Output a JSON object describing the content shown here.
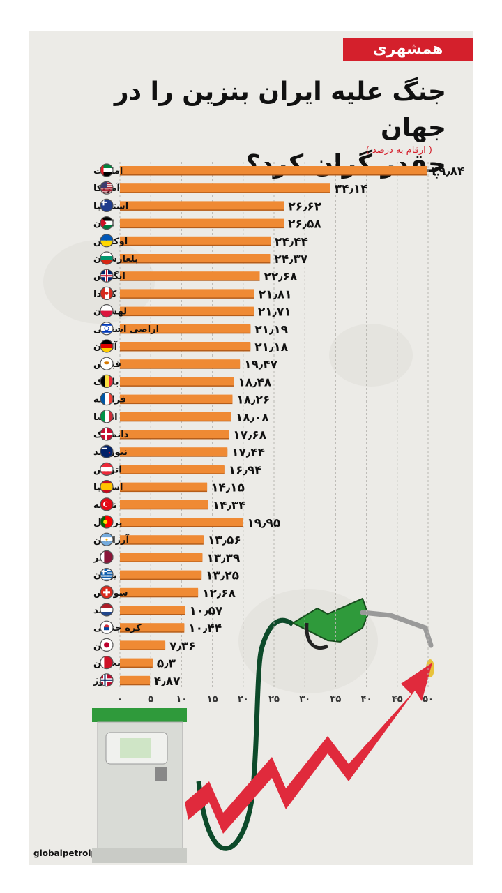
{
  "brand": {
    "logo_text": "همشهری",
    "accent": "#d4202c"
  },
  "header": {
    "title_line1": "جنگ علیه ایران بنزین را در جهان",
    "title_line2": "چقدر گران کرد؟",
    "units_note": "( ارقام به درصد )"
  },
  "footer": {
    "source": "globalpetrolprices /منبع: الجزیره"
  },
  "colors": {
    "bar": "#ef8a34",
    "bar_shadow": "#b55d1a",
    "arrow": "#e02a3c",
    "nozzle": "#2f9a3b",
    "hose": "#0d4a2a"
  },
  "chart_data": {
    "type": "bar",
    "orientation": "horizontal",
    "title": "جنگ علیه ایران بنزین را در جهان چقدر گران کرد؟",
    "ylabel": "( ارقام به درصد )",
    "xlim": [
      0,
      50
    ],
    "x_ticks": [
      "۰",
      "۵",
      "۱۰",
      "۱۵",
      "۲۰",
      "۲۵",
      "۳۰",
      "۳۵",
      "۴۰",
      "۴۵",
      "۵۰"
    ],
    "categories": [
      "امارات",
      "آمریکا",
      "استرالیا",
      "اردن",
      "اوکراین",
      "بلغارستان",
      "انگلیس",
      "کانادا",
      "لهستان",
      "اراضی اشغالی",
      "آلمان",
      "قبرس",
      "بلژیک",
      "فرانسه",
      "ایتالیا",
      "دانمارک",
      "نیوزیلند",
      "اتریش",
      "اسپانیا",
      "ترکیه",
      "پرتغال",
      "آرژانتین",
      "قطر",
      "یونان",
      "سوئیس",
      "هلند",
      "کره جنوبی",
      "ژاپن",
      "بحرین",
      "نروژ"
    ],
    "values": [
      49.84,
      34.14,
      26.62,
      26.58,
      24.44,
      24.37,
      22.68,
      21.81,
      21.71,
      21.19,
      21.18,
      19.47,
      18.48,
      18.26,
      18.08,
      17.68,
      17.44,
      16.94,
      14.15,
      14.34,
      19.95,
      13.56,
      13.39,
      13.25,
      12.68,
      10.57,
      10.44,
      7.36,
      5.3,
      4.87
    ],
    "value_labels": [
      "۴۹٫۸۴",
      "۳۴٫۱۴",
      "۲۶٫۶۲",
      "۲۶٫۵۸",
      "۲۴٫۴۴",
      "۲۴٫۳۷",
      "۲۲٫۶۸",
      "۲۱٫۸۱",
      "۲۱٫۷۱",
      "۲۱٫۱۹",
      "۲۱٫۱۸",
      "۱۹٫۴۷",
      "۱۸٫۴۸",
      "۱۸٫۲۶",
      "۱۸٫۰۸",
      "۱۷٫۶۸",
      "۱۷٫۴۴",
      "۱۶٫۹۴",
      "۱۴٫۱۵",
      "۱۴٫۳۴",
      "۱۹٫۹۵",
      "۱۳٫۵۶",
      "۱۳٫۳۹",
      "۱۳٫۲۵",
      "۱۲٫۶۸",
      "۱۰٫۵۷",
      "۱۰٫۴۴",
      "۷٫۳۶",
      "۵٫۳",
      "۴٫۸۷"
    ],
    "flags": [
      "uae-flag",
      "usa-flag",
      "australia-flag",
      "jordan-flag",
      "ukraine-flag",
      "bulgaria-flag",
      "uk-flag",
      "canada-flag",
      "poland-flag",
      "israel-flag",
      "germany-flag",
      "cyprus-flag",
      "belgium-flag",
      "france-flag",
      "italy-flag",
      "denmark-flag",
      "new-zealand-flag",
      "austria-flag",
      "spain-flag",
      "turkey-flag",
      "portugal-flag",
      "argentina-flag",
      "qatar-flag",
      "greece-flag",
      "switzerland-flag",
      "netherlands-flag",
      "south-korea-flag",
      "japan-flag",
      "bahrain-flag",
      "norway-flag"
    ],
    "grid": true
  }
}
